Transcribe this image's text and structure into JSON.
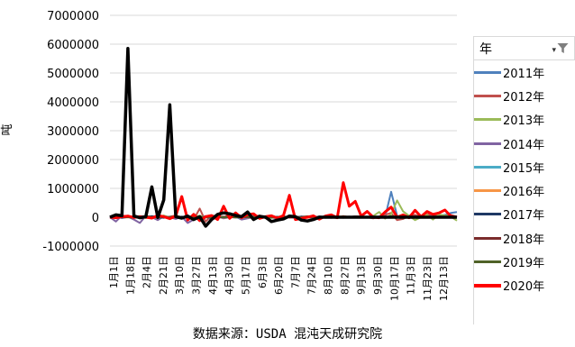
{
  "chart_data": {
    "type": "line",
    "title": "",
    "xlabel": "",
    "ylabel": "吨",
    "ylim": [
      -1000000,
      7000000
    ],
    "yticks": [
      7000000,
      6000000,
      5000000,
      4000000,
      3000000,
      2000000,
      1000000,
      0,
      -1000000
    ],
    "ytick_labels": [
      "7000000",
      "6000000",
      "5000000",
      "4000000",
      "3000000",
      "2000000",
      "1000000",
      "0",
      "-1000000"
    ],
    "grid": "horizontal",
    "legend_position": "right",
    "x_tick_labels": [
      "1月1日",
      "1月18日",
      "2月4日",
      "2月21日",
      "3月10日",
      "3月27日",
      "4月13日",
      "4月30日",
      "5月17日",
      "6月3日",
      "6月20日",
      "7月7日",
      "7月24日",
      "8月10日",
      "8月27日",
      "9月13日",
      "9月30日",
      "10月17日",
      "11月3日",
      "11月23日",
      "12月13日"
    ],
    "series": [
      {
        "name": "2011年",
        "color": "#4f81bd",
        "width": 2,
        "values": [
          0,
          20000,
          -30000,
          10000,
          0,
          30000,
          -20000,
          40000,
          0,
          20000,
          -10000,
          30000,
          0,
          -20000,
          10000,
          20000,
          0,
          -10000,
          30000,
          0,
          20000,
          -10000,
          0,
          10000,
          30000,
          0,
          -20000,
          10000,
          20000,
          0,
          -10000,
          0,
          20000,
          10000,
          0,
          -10000,
          20000,
          0,
          10000,
          -20000,
          0,
          30000,
          10000,
          0,
          0,
          20000,
          0,
          880000,
          50000,
          -50000,
          60000,
          20000,
          0,
          50000,
          100000,
          60000,
          80000,
          150000,
          180000
        ]
      },
      {
        "name": "2012年",
        "color": "#c0504d",
        "width": 2,
        "values": [
          0,
          -30000,
          10000,
          40000,
          0,
          -20000,
          30000,
          20000,
          0,
          -10000,
          20000,
          60000,
          0,
          40000,
          -80000,
          300000,
          -150000,
          60000,
          40000,
          -20000,
          120000,
          20000,
          0,
          -30000,
          20000,
          60000,
          0,
          -10000,
          10000,
          40000,
          -20000,
          0,
          20000,
          30000,
          0,
          -20000,
          20000,
          0,
          -30000,
          40000,
          0,
          30000,
          20000,
          0,
          -40000,
          20000,
          80000,
          150000,
          -100000,
          -60000,
          50000,
          80000,
          0,
          100000,
          80000,
          60000,
          50000,
          80000,
          20000
        ]
      },
      {
        "name": "2013年",
        "color": "#9bbb59",
        "width": 2,
        "values": [
          0,
          30000,
          0,
          50000,
          0,
          20000,
          -30000,
          10000,
          0,
          60000,
          -20000,
          40000,
          0,
          -30000,
          20000,
          50000,
          0,
          -20000,
          30000,
          0,
          10000,
          -10000,
          20000,
          0,
          -20000,
          30000,
          0,
          10000,
          -10000,
          0,
          20000,
          0,
          -10000,
          20000,
          0,
          10000,
          -20000,
          0,
          30000,
          10000,
          0,
          0,
          20000,
          0,
          40000,
          180000,
          -50000,
          100000,
          580000,
          200000,
          50000,
          -100000,
          0,
          80000,
          -80000,
          100000,
          60000,
          20000,
          -120000
        ]
      },
      {
        "name": "2014年",
        "color": "#8064a2",
        "width": 2,
        "values": [
          0,
          -150000,
          60000,
          20000,
          -80000,
          -200000,
          50000,
          0,
          -100000,
          30000,
          0,
          -60000,
          20000,
          -200000,
          -80000,
          0,
          40000,
          -100000,
          20000,
          -40000,
          0,
          20000,
          -80000,
          -40000,
          0,
          -20000,
          20000,
          0,
          -50000,
          20000,
          0,
          -30000,
          20000,
          0,
          -10000,
          30000,
          0,
          -20000,
          10000,
          0,
          20000,
          -10000,
          0,
          10000,
          20000,
          0,
          -20000,
          0,
          10000,
          20000,
          0,
          -10000,
          0,
          10000,
          0,
          20000,
          0,
          10000,
          0
        ]
      },
      {
        "name": "2015年",
        "color": "#4bacc6",
        "width": 2,
        "values": [
          0,
          10000,
          -10000,
          20000,
          0,
          10000,
          -20000,
          0,
          10000,
          30000,
          0,
          -10000,
          20000,
          0,
          -10000,
          10000,
          0,
          20000,
          -10000,
          0,
          10000,
          0,
          -20000,
          10000,
          0,
          20000,
          0,
          -10000,
          10000,
          0,
          20000,
          0,
          -10000,
          0,
          10000,
          20000,
          0,
          -10000,
          0,
          10000,
          0,
          20000,
          -10000,
          0,
          10000,
          0,
          20000,
          0,
          -10000,
          10000,
          0,
          20000,
          0,
          10000,
          0,
          -10000,
          20000,
          0,
          10000
        ]
      },
      {
        "name": "2016年",
        "color": "#f79646",
        "width": 2,
        "values": [
          0,
          20000,
          0,
          -10000,
          30000,
          0,
          10000,
          -20000,
          0,
          20000,
          -10000,
          30000,
          0,
          10000,
          -10000,
          20000,
          0,
          30000,
          0,
          -20000,
          10000,
          0,
          20000,
          -10000,
          0,
          10000,
          30000,
          0,
          -10000,
          20000,
          0,
          10000,
          0,
          -20000,
          10000,
          0,
          20000,
          -10000,
          0,
          30000,
          0,
          10000,
          -10000,
          0,
          20000,
          0,
          10000,
          0,
          -20000,
          20000,
          0,
          10000,
          0,
          30000,
          0,
          -10000,
          20000,
          0,
          10000
        ]
      },
      {
        "name": "2017年",
        "color": "#1f3864",
        "width": 2,
        "values": [
          0,
          10000,
          0,
          20000,
          -10000,
          0,
          10000,
          30000,
          0,
          -20000,
          10000,
          0,
          20000,
          0,
          -10000,
          10000,
          0,
          20000,
          0,
          -10000,
          0,
          10000,
          20000,
          0,
          -10000,
          10000,
          0,
          20000,
          0,
          -10000,
          10000,
          0,
          20000,
          0,
          -10000,
          0,
          10000,
          20000,
          0,
          -10000,
          10000,
          0,
          20000,
          0,
          -10000,
          10000,
          0,
          20000,
          0,
          -10000,
          0,
          10000,
          20000,
          0,
          -10000,
          10000,
          0,
          20000,
          0
        ]
      },
      {
        "name": "2018年",
        "color": "#7b2c2c",
        "width": 2,
        "values": [
          0,
          10000,
          -10000,
          0,
          20000,
          0,
          -10000,
          10000,
          0,
          20000,
          0,
          -10000,
          10000,
          0,
          20000,
          0,
          -10000,
          0,
          10000,
          20000,
          0,
          -10000,
          10000,
          0,
          20000,
          0,
          -10000,
          10000,
          0,
          20000,
          0,
          -10000,
          0,
          10000,
          20000,
          0,
          -10000,
          10000,
          0,
          20000,
          0,
          -10000,
          10000,
          0,
          20000,
          0,
          -10000,
          0,
          10000,
          20000,
          0,
          -10000,
          10000,
          0,
          20000,
          0,
          -10000,
          10000,
          0
        ]
      },
      {
        "name": "2019年",
        "color": "#4f6228",
        "width": 2,
        "values": [
          0,
          20000,
          30000,
          0,
          -20000,
          10000,
          40000,
          0,
          -10000,
          20000,
          0,
          30000,
          -10000,
          0,
          20000,
          10000,
          0,
          -20000,
          30000,
          0,
          10000,
          0,
          -10000,
          20000,
          0,
          30000,
          0,
          -20000,
          10000,
          0,
          20000,
          0,
          -10000,
          30000,
          0,
          10000,
          0,
          20000,
          -10000,
          0,
          10000,
          0,
          20000,
          0,
          -10000,
          10000,
          0,
          30000,
          0,
          -20000,
          10000,
          0,
          20000,
          0,
          -10000,
          10000,
          0,
          20000,
          0
        ]
      },
      {
        "name": "2020年",
        "color": "#ff0000",
        "width": 3,
        "values": [
          0,
          -20000,
          20000,
          40000,
          -10000,
          20000,
          0,
          -30000,
          60000,
          20000,
          -50000,
          40000,
          720000,
          -100000,
          100000,
          -120000,
          20000,
          60000,
          -80000,
          380000,
          -40000,
          150000,
          -20000,
          90000,
          120000,
          -40000,
          20000,
          50000,
          -30000,
          60000,
          760000,
          -80000,
          -40000,
          0,
          50000,
          -70000,
          40000,
          80000,
          -20000,
          1200000,
          380000,
          550000,
          40000,
          200000,
          0,
          -20000,
          180000,
          350000,
          0,
          80000,
          -20000,
          240000,
          20000,
          200000,
          100000,
          150000,
          250000,
          30000,
          0
        ]
      },
      {
        "name": "",
        "color": "#000000",
        "width": 3.5,
        "legend": false,
        "values": [
          0,
          80000,
          50000,
          5850000,
          40000,
          -20000,
          20000,
          1050000,
          -10000,
          600000,
          3900000,
          20000,
          -30000,
          40000,
          -80000,
          20000,
          -310000,
          -80000,
          100000,
          150000,
          120000,
          60000,
          20000,
          180000,
          -80000,
          30000,
          0,
          -150000,
          -100000,
          -60000,
          40000,
          20000,
          -100000,
          -130000,
          -80000,
          0,
          0,
          0,
          0,
          0,
          0,
          0,
          0,
          0,
          0,
          0,
          0,
          0,
          0,
          0,
          0,
          0,
          0,
          0,
          0,
          0,
          0,
          0,
          0
        ]
      }
    ]
  },
  "source_text": "数据来源：USDA 混沌天成研究院",
  "legend": {
    "title": "年",
    "filter_icon": "filter-icon",
    "items": [
      {
        "label": "2011年",
        "color": "#4f81bd"
      },
      {
        "label": "2012年",
        "color": "#c0504d"
      },
      {
        "label": "2013年",
        "color": "#9bbb59"
      },
      {
        "label": "2014年",
        "color": "#8064a2"
      },
      {
        "label": "2015年",
        "color": "#4bacc6"
      },
      {
        "label": "2016年",
        "color": "#f79646"
      },
      {
        "label": "2017年",
        "color": "#1f3864"
      },
      {
        "label": "2018年",
        "color": "#7b2c2c"
      },
      {
        "label": "2019年",
        "color": "#4f6228"
      },
      {
        "label": "2020年",
        "color": "#ff0000"
      }
    ]
  }
}
